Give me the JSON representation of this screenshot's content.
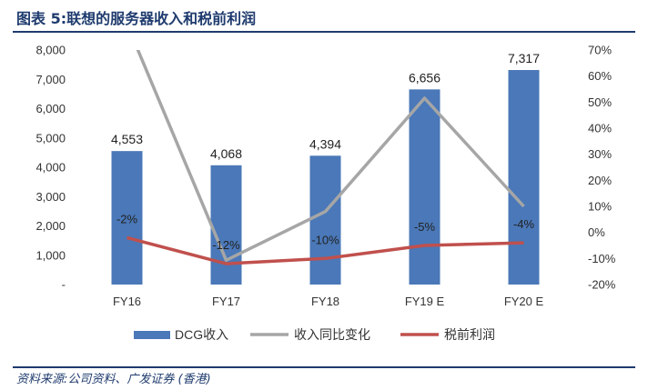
{
  "header": {
    "title": "图表 5:联想的服务器收入和税前利润"
  },
  "footer": {
    "source": "资料来源:公司资料、广发证券 (香港)"
  },
  "colors": {
    "bar": "#4a78b8",
    "yoy_line": "#a6a6a6",
    "profit_line": "#c0504d",
    "accent": "#1f3b6e"
  },
  "chart_data": {
    "type": "bar",
    "categories": [
      "FY16",
      "FY17",
      "FY18",
      "FY19E",
      "FY20E"
    ],
    "category_labels": [
      "FY16",
      "FY17",
      "FY18",
      "FY19 E",
      "FY20 E"
    ],
    "left_axis": {
      "min": 0,
      "max": 8000,
      "step": 1000,
      "tick_labels": [
        "-",
        "1,000",
        "2,000",
        "3,000",
        "4,000",
        "5,000",
        "6,000",
        "7,000",
        "8,000"
      ]
    },
    "right_axis": {
      "min": -20,
      "max": 70,
      "step": 10,
      "unit": "%",
      "tick_labels": [
        "-20%",
        "-10%",
        "0%",
        "10%",
        "20%",
        "30%",
        "40%",
        "50%",
        "60%",
        "70%"
      ]
    },
    "series": [
      {
        "name": "DCG收入",
        "type": "bar",
        "axis": "left",
        "values": [
          4553,
          4068,
          4394,
          6656,
          7317
        ],
        "data_labels": [
          "4,553",
          "4,068",
          "4,394",
          "6,656",
          "7,317"
        ]
      },
      {
        "name": "收入同比变化",
        "type": "line",
        "axis": "right",
        "values": [
          80,
          -10.7,
          8.0,
          51.5,
          10.0
        ]
      },
      {
        "name": "税前利润",
        "type": "line",
        "axis": "right",
        "values": [
          -2,
          -12,
          -10,
          -5,
          -4
        ],
        "data_labels": [
          "-2%",
          "-12%",
          "-10%",
          "-5%",
          "-4%"
        ]
      }
    ],
    "legend_position": "bottom",
    "grid": false
  }
}
